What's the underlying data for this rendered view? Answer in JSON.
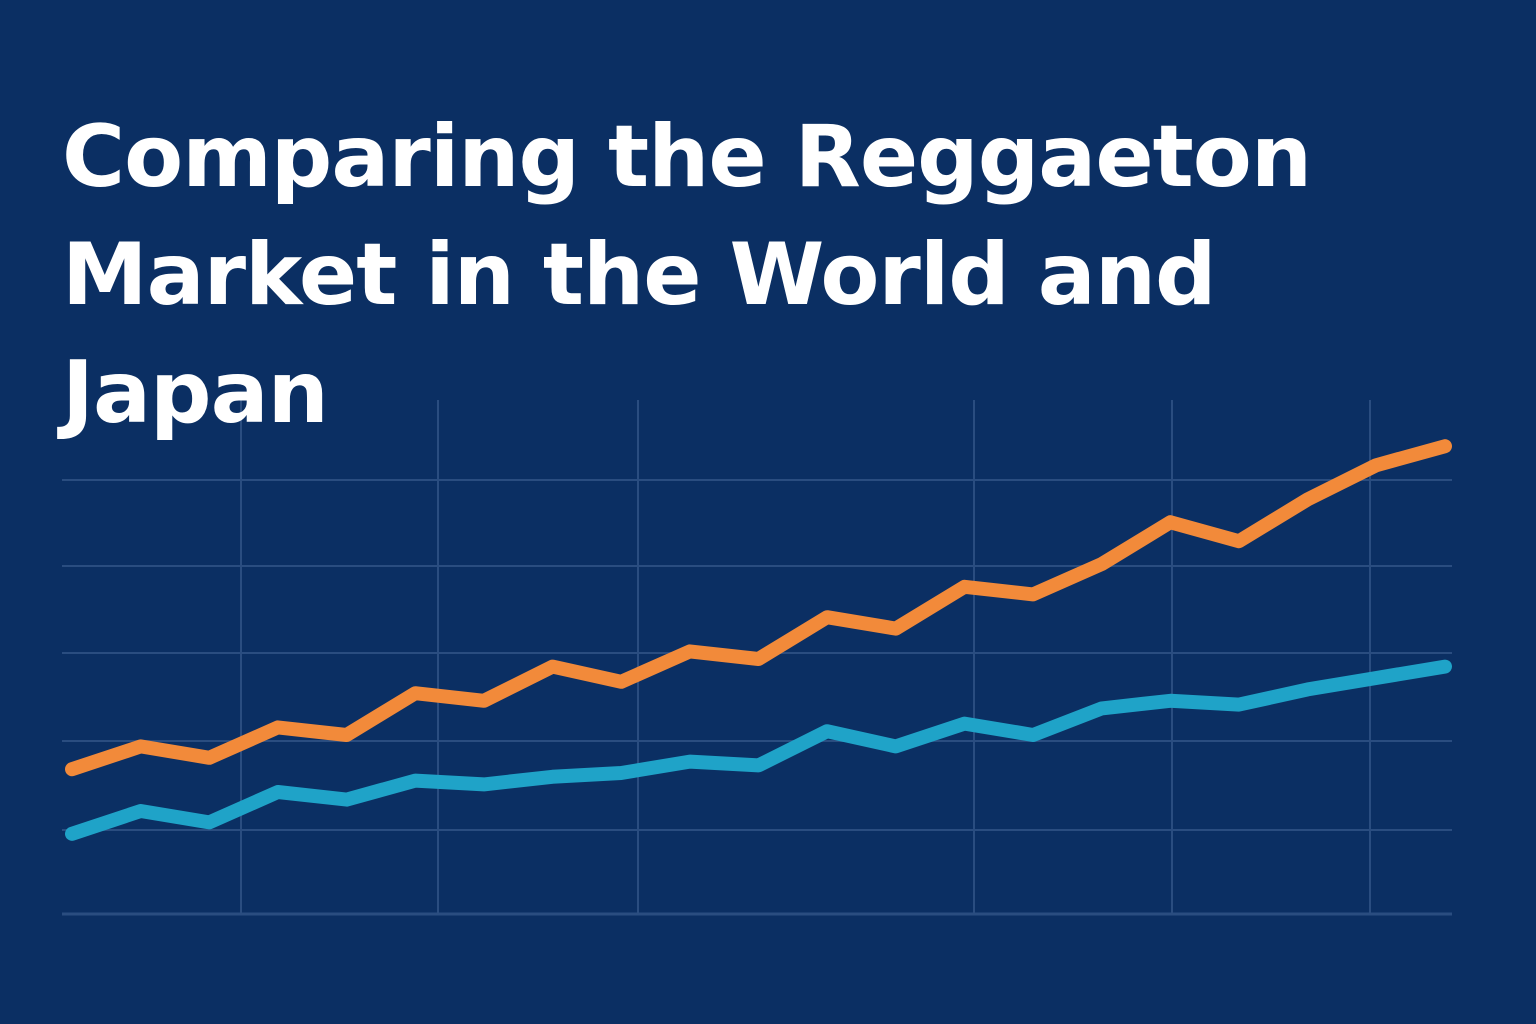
{
  "title": "Comparing the Reggaeton Market in the World and Japan",
  "colors": {
    "background": "#0b2f63",
    "grid": "#2a4d80",
    "title_text": "#ffffff"
  },
  "chart_data": {
    "type": "line",
    "title": "Comparing the Reggaeton Market in the World and Japan",
    "xlabel": "",
    "ylabel": "",
    "grid": true,
    "legend": "none",
    "x": [
      1,
      2,
      3,
      4,
      5,
      6,
      7,
      8,
      9,
      10,
      11,
      12,
      13,
      14,
      15,
      16,
      17,
      18,
      19,
      20,
      21
    ],
    "ylim": [
      0,
      110
    ],
    "series": [
      {
        "color": "#f28a3a",
        "values": [
          16,
          22,
          19,
          27,
          25,
          36,
          34,
          43,
          39,
          47,
          45,
          56,
          53,
          64,
          62,
          70,
          81,
          76,
          87,
          96,
          101
        ]
      },
      {
        "color": "#1fa3c8",
        "values": [
          -1,
          5,
          2,
          10,
          8,
          13,
          12,
          14,
          15,
          18,
          17,
          26,
          22,
          28,
          25,
          32,
          34,
          33,
          37,
          40,
          43
        ]
      }
    ]
  }
}
